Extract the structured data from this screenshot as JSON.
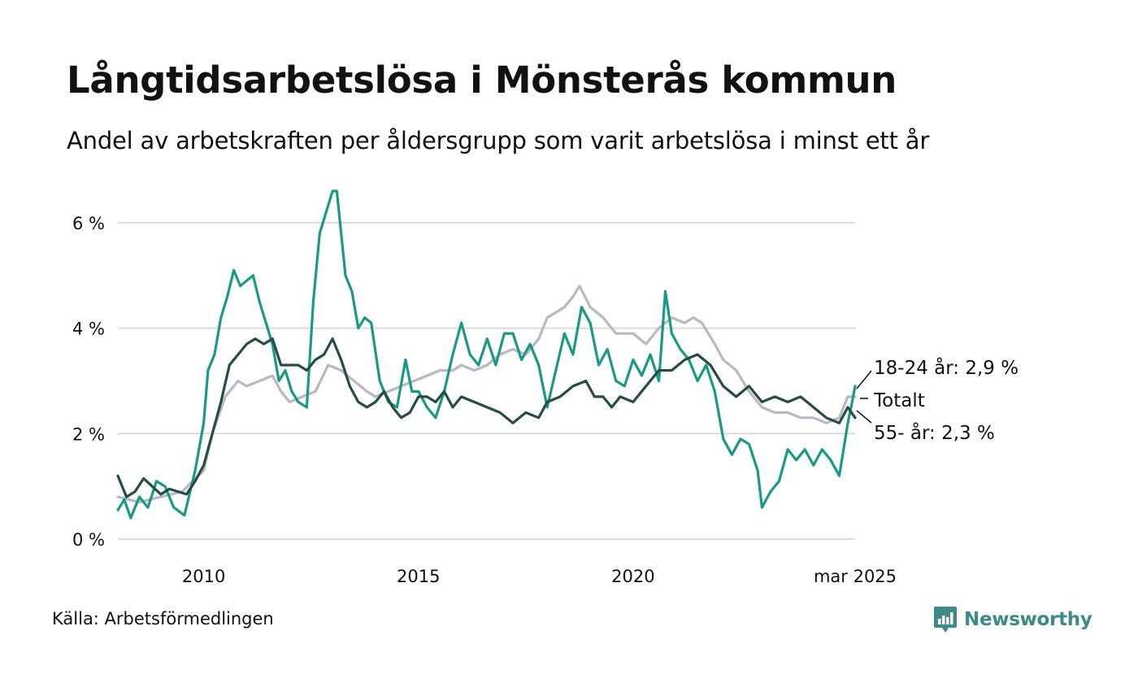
{
  "title": "Långtidsarbetslösa i Mönsterås kommun",
  "subtitle": "Andel av arbetskraften per åldersgrupp som varit arbetslösa i minst ett år",
  "source": "Källa: Arbetsförmedlingen",
  "brand": {
    "name": "Newsworthy",
    "icon": "bar-chart-logo-icon",
    "color": "#3d8a86"
  },
  "chart_data": {
    "type": "line",
    "title": "",
    "xlabel": "",
    "ylabel": "",
    "x_range": [
      2008.0,
      2025.17
    ],
    "ylim": [
      0,
      6.6
    ],
    "y_ticks": [
      0,
      2,
      4,
      6
    ],
    "y_tick_labels": [
      "0 %",
      "2 %",
      "4 %",
      "6 %"
    ],
    "x_ticks": [
      2010,
      2015,
      2020,
      2025.17
    ],
    "x_tick_labels": [
      "2010",
      "2015",
      "2020",
      "mar 2025"
    ],
    "grid": "horizontal",
    "legend": "end-labels",
    "series": [
      {
        "key": "total",
        "end_label": "Totalt",
        "color": "#b9b8c6",
        "points": [
          [
            2008.0,
            0.8
          ],
          [
            2008.5,
            0.7
          ],
          [
            2009.0,
            0.8
          ],
          [
            2009.5,
            0.9
          ],
          [
            2010.0,
            1.3
          ],
          [
            2010.2,
            2.0
          ],
          [
            2010.5,
            2.7
          ],
          [
            2010.8,
            3.0
          ],
          [
            2011.0,
            2.9
          ],
          [
            2011.3,
            3.0
          ],
          [
            2011.6,
            3.1
          ],
          [
            2011.8,
            2.8
          ],
          [
            2012.0,
            2.6
          ],
          [
            2012.3,
            2.7
          ],
          [
            2012.6,
            2.8
          ],
          [
            2012.9,
            3.3
          ],
          [
            2013.2,
            3.2
          ],
          [
            2013.5,
            3.0
          ],
          [
            2013.8,
            2.8
          ],
          [
            2014.0,
            2.7
          ],
          [
            2014.3,
            2.8
          ],
          [
            2014.6,
            2.9
          ],
          [
            2014.9,
            3.0
          ],
          [
            2015.2,
            3.1
          ],
          [
            2015.5,
            3.2
          ],
          [
            2015.8,
            3.2
          ],
          [
            2016.0,
            3.3
          ],
          [
            2016.3,
            3.2
          ],
          [
            2016.6,
            3.3
          ],
          [
            2016.9,
            3.5
          ],
          [
            2017.2,
            3.6
          ],
          [
            2017.5,
            3.5
          ],
          [
            2017.8,
            3.8
          ],
          [
            2018.0,
            4.2
          ],
          [
            2018.2,
            4.3
          ],
          [
            2018.4,
            4.4
          ],
          [
            2018.6,
            4.6
          ],
          [
            2018.75,
            4.8
          ],
          [
            2019.0,
            4.4
          ],
          [
            2019.3,
            4.2
          ],
          [
            2019.6,
            3.9
          ],
          [
            2020.0,
            3.9
          ],
          [
            2020.3,
            3.7
          ],
          [
            2020.6,
            4.0
          ],
          [
            2020.9,
            4.2
          ],
          [
            2021.2,
            4.1
          ],
          [
            2021.4,
            4.2
          ],
          [
            2021.6,
            4.1
          ],
          [
            2021.9,
            3.7
          ],
          [
            2022.1,
            3.4
          ],
          [
            2022.4,
            3.2
          ],
          [
            2022.7,
            2.8
          ],
          [
            2023.0,
            2.5
          ],
          [
            2023.3,
            2.4
          ],
          [
            2023.6,
            2.4
          ],
          [
            2023.9,
            2.3
          ],
          [
            2024.2,
            2.3
          ],
          [
            2024.5,
            2.2
          ],
          [
            2024.8,
            2.3
          ],
          [
            2025.0,
            2.7
          ],
          [
            2025.17,
            2.7
          ]
        ]
      },
      {
        "key": "age_18_24",
        "end_label": "18-24 år: 2,9 %",
        "color": "#1a9a85",
        "points": [
          [
            2008.0,
            0.55
          ],
          [
            2008.15,
            0.75
          ],
          [
            2008.3,
            0.4
          ],
          [
            2008.5,
            0.8
          ],
          [
            2008.7,
            0.6
          ],
          [
            2008.9,
            1.1
          ],
          [
            2009.1,
            1.0
          ],
          [
            2009.3,
            0.6
          ],
          [
            2009.55,
            0.45
          ],
          [
            2009.8,
            1.3
          ],
          [
            2010.0,
            2.2
          ],
          [
            2010.1,
            3.2
          ],
          [
            2010.25,
            3.5
          ],
          [
            2010.4,
            4.2
          ],
          [
            2010.55,
            4.6
          ],
          [
            2010.7,
            5.1
          ],
          [
            2010.85,
            4.8
          ],
          [
            2011.0,
            4.9
          ],
          [
            2011.15,
            5.0
          ],
          [
            2011.3,
            4.5
          ],
          [
            2011.45,
            4.1
          ],
          [
            2011.6,
            3.7
          ],
          [
            2011.75,
            3.0
          ],
          [
            2011.9,
            3.2
          ],
          [
            2012.05,
            2.8
          ],
          [
            2012.2,
            2.6
          ],
          [
            2012.4,
            2.5
          ],
          [
            2012.55,
            4.5
          ],
          [
            2012.7,
            5.8
          ],
          [
            2012.85,
            6.2
          ],
          [
            2013.0,
            6.6
          ],
          [
            2013.1,
            6.6
          ],
          [
            2013.3,
            5.0
          ],
          [
            2013.45,
            4.7
          ],
          [
            2013.6,
            4.0
          ],
          [
            2013.75,
            4.2
          ],
          [
            2013.9,
            4.1
          ],
          [
            2014.1,
            3.0
          ],
          [
            2014.3,
            2.6
          ],
          [
            2014.5,
            2.5
          ],
          [
            2014.7,
            3.4
          ],
          [
            2014.85,
            2.8
          ],
          [
            2015.0,
            2.8
          ],
          [
            2015.2,
            2.5
          ],
          [
            2015.4,
            2.3
          ],
          [
            2015.6,
            2.8
          ],
          [
            2015.8,
            3.5
          ],
          [
            2016.0,
            4.1
          ],
          [
            2016.2,
            3.5
          ],
          [
            2016.4,
            3.3
          ],
          [
            2016.6,
            3.8
          ],
          [
            2016.8,
            3.3
          ],
          [
            2017.0,
            3.9
          ],
          [
            2017.2,
            3.9
          ],
          [
            2017.4,
            3.4
          ],
          [
            2017.6,
            3.7
          ],
          [
            2017.8,
            3.3
          ],
          [
            2018.0,
            2.5
          ],
          [
            2018.2,
            3.2
          ],
          [
            2018.4,
            3.9
          ],
          [
            2018.6,
            3.5
          ],
          [
            2018.8,
            4.4
          ],
          [
            2019.0,
            4.1
          ],
          [
            2019.2,
            3.3
          ],
          [
            2019.4,
            3.6
          ],
          [
            2019.6,
            3.0
          ],
          [
            2019.8,
            2.9
          ],
          [
            2020.0,
            3.4
          ],
          [
            2020.2,
            3.1
          ],
          [
            2020.4,
            3.5
          ],
          [
            2020.6,
            3.0
          ],
          [
            2020.75,
            4.7
          ],
          [
            2020.9,
            3.9
          ],
          [
            2021.1,
            3.6
          ],
          [
            2021.3,
            3.4
          ],
          [
            2021.5,
            3.0
          ],
          [
            2021.7,
            3.3
          ],
          [
            2021.9,
            2.8
          ],
          [
            2022.1,
            1.9
          ],
          [
            2022.3,
            1.6
          ],
          [
            2022.5,
            1.9
          ],
          [
            2022.7,
            1.8
          ],
          [
            2022.9,
            1.3
          ],
          [
            2023.0,
            0.6
          ],
          [
            2023.2,
            0.9
          ],
          [
            2023.4,
            1.1
          ],
          [
            2023.6,
            1.7
          ],
          [
            2023.8,
            1.5
          ],
          [
            2024.0,
            1.7
          ],
          [
            2024.2,
            1.4
          ],
          [
            2024.4,
            1.7
          ],
          [
            2024.6,
            1.5
          ],
          [
            2024.8,
            1.2
          ],
          [
            2025.0,
            2.2
          ],
          [
            2025.1,
            2.6
          ],
          [
            2025.17,
            2.9
          ]
        ]
      },
      {
        "key": "age_55",
        "end_label": "55- år: 2,3 %",
        "color": "#264d44",
        "points": [
          [
            2008.0,
            1.2
          ],
          [
            2008.2,
            0.8
          ],
          [
            2008.4,
            0.9
          ],
          [
            2008.6,
            1.15
          ],
          [
            2008.8,
            1.0
          ],
          [
            2009.0,
            0.85
          ],
          [
            2009.2,
            0.95
          ],
          [
            2009.4,
            0.9
          ],
          [
            2009.6,
            0.85
          ],
          [
            2009.8,
            1.1
          ],
          [
            2010.0,
            1.4
          ],
          [
            2010.2,
            2.0
          ],
          [
            2010.4,
            2.6
          ],
          [
            2010.6,
            3.3
          ],
          [
            2010.8,
            3.5
          ],
          [
            2011.0,
            3.7
          ],
          [
            2011.2,
            3.8
          ],
          [
            2011.4,
            3.7
          ],
          [
            2011.6,
            3.8
          ],
          [
            2011.8,
            3.3
          ],
          [
            2012.0,
            3.3
          ],
          [
            2012.2,
            3.3
          ],
          [
            2012.4,
            3.2
          ],
          [
            2012.6,
            3.4
          ],
          [
            2012.8,
            3.5
          ],
          [
            2013.0,
            3.8
          ],
          [
            2013.2,
            3.4
          ],
          [
            2013.4,
            2.9
          ],
          [
            2013.6,
            2.6
          ],
          [
            2013.8,
            2.5
          ],
          [
            2014.0,
            2.6
          ],
          [
            2014.2,
            2.8
          ],
          [
            2014.4,
            2.5
          ],
          [
            2014.6,
            2.3
          ],
          [
            2014.8,
            2.4
          ],
          [
            2015.0,
            2.7
          ],
          [
            2015.2,
            2.7
          ],
          [
            2015.4,
            2.6
          ],
          [
            2015.6,
            2.8
          ],
          [
            2015.8,
            2.5
          ],
          [
            2016.0,
            2.7
          ],
          [
            2016.3,
            2.6
          ],
          [
            2016.6,
            2.5
          ],
          [
            2016.9,
            2.4
          ],
          [
            2017.2,
            2.2
          ],
          [
            2017.5,
            2.4
          ],
          [
            2017.8,
            2.3
          ],
          [
            2018.0,
            2.6
          ],
          [
            2018.3,
            2.7
          ],
          [
            2018.6,
            2.9
          ],
          [
            2018.9,
            3.0
          ],
          [
            2019.1,
            2.7
          ],
          [
            2019.3,
            2.7
          ],
          [
            2019.5,
            2.5
          ],
          [
            2019.7,
            2.7
          ],
          [
            2020.0,
            2.6
          ],
          [
            2020.3,
            2.9
          ],
          [
            2020.6,
            3.2
          ],
          [
            2020.9,
            3.2
          ],
          [
            2021.2,
            3.4
          ],
          [
            2021.5,
            3.5
          ],
          [
            2021.8,
            3.3
          ],
          [
            2022.1,
            2.9
          ],
          [
            2022.4,
            2.7
          ],
          [
            2022.7,
            2.9
          ],
          [
            2023.0,
            2.6
          ],
          [
            2023.3,
            2.7
          ],
          [
            2023.6,
            2.6
          ],
          [
            2023.9,
            2.7
          ],
          [
            2024.2,
            2.5
          ],
          [
            2024.5,
            2.3
          ],
          [
            2024.8,
            2.2
          ],
          [
            2025.0,
            2.5
          ],
          [
            2025.17,
            2.3
          ]
        ]
      }
    ]
  }
}
